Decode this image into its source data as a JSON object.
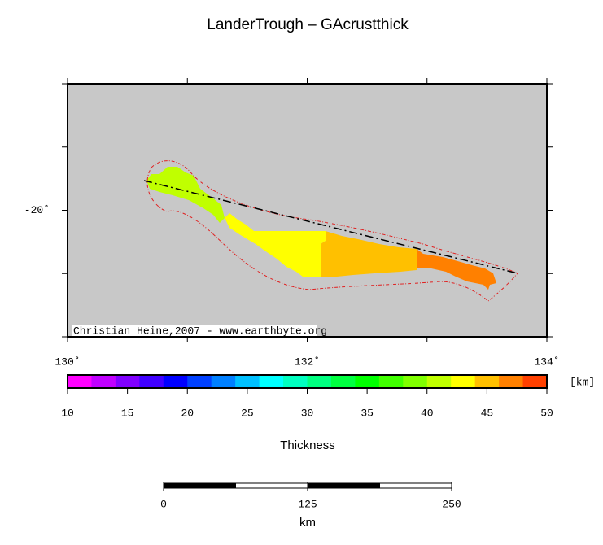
{
  "header": {
    "title": "LanderTrough – GAcrustthick"
  },
  "map": {
    "xlim": [
      130,
      134
    ],
    "ylim": [
      -21,
      -19
    ],
    "xticks": [
      130,
      131,
      132,
      133,
      134
    ],
    "yticks": [
      -21,
      -20.5,
      -20,
      -19.5,
      -19
    ],
    "xlabels": [
      {
        "value": 130,
        "label": "130˚"
      },
      {
        "value": 132,
        "label": "132˚"
      },
      {
        "value": 134,
        "label": "134˚"
      }
    ],
    "ylabels": [
      {
        "value": -20,
        "label": "-20˚"
      }
    ],
    "credit": "Christian Heine,2007 - www.earthbyte.org"
  },
  "colorbar": {
    "range": [
      10,
      50
    ],
    "ticks": [
      10,
      15,
      20,
      25,
      30,
      35,
      40,
      45,
      50
    ],
    "unit": "[km]",
    "label": "Thickness",
    "colors": [
      "#ff00ff",
      "#c000ff",
      "#8000ff",
      "#4000ff",
      "#0000ff",
      "#0040ff",
      "#0080ff",
      "#00c0ff",
      "#00ffff",
      "#00ffc0",
      "#00ff80",
      "#00ff40",
      "#00ff00",
      "#40ff00",
      "#80ff00",
      "#c0ff00",
      "#ffff00",
      "#ffc000",
      "#ff8000",
      "#ff4000"
    ]
  },
  "scalebar": {
    "range": [
      0,
      250
    ],
    "ticks": [
      0,
      125,
      250
    ],
    "unit": "km"
  }
}
